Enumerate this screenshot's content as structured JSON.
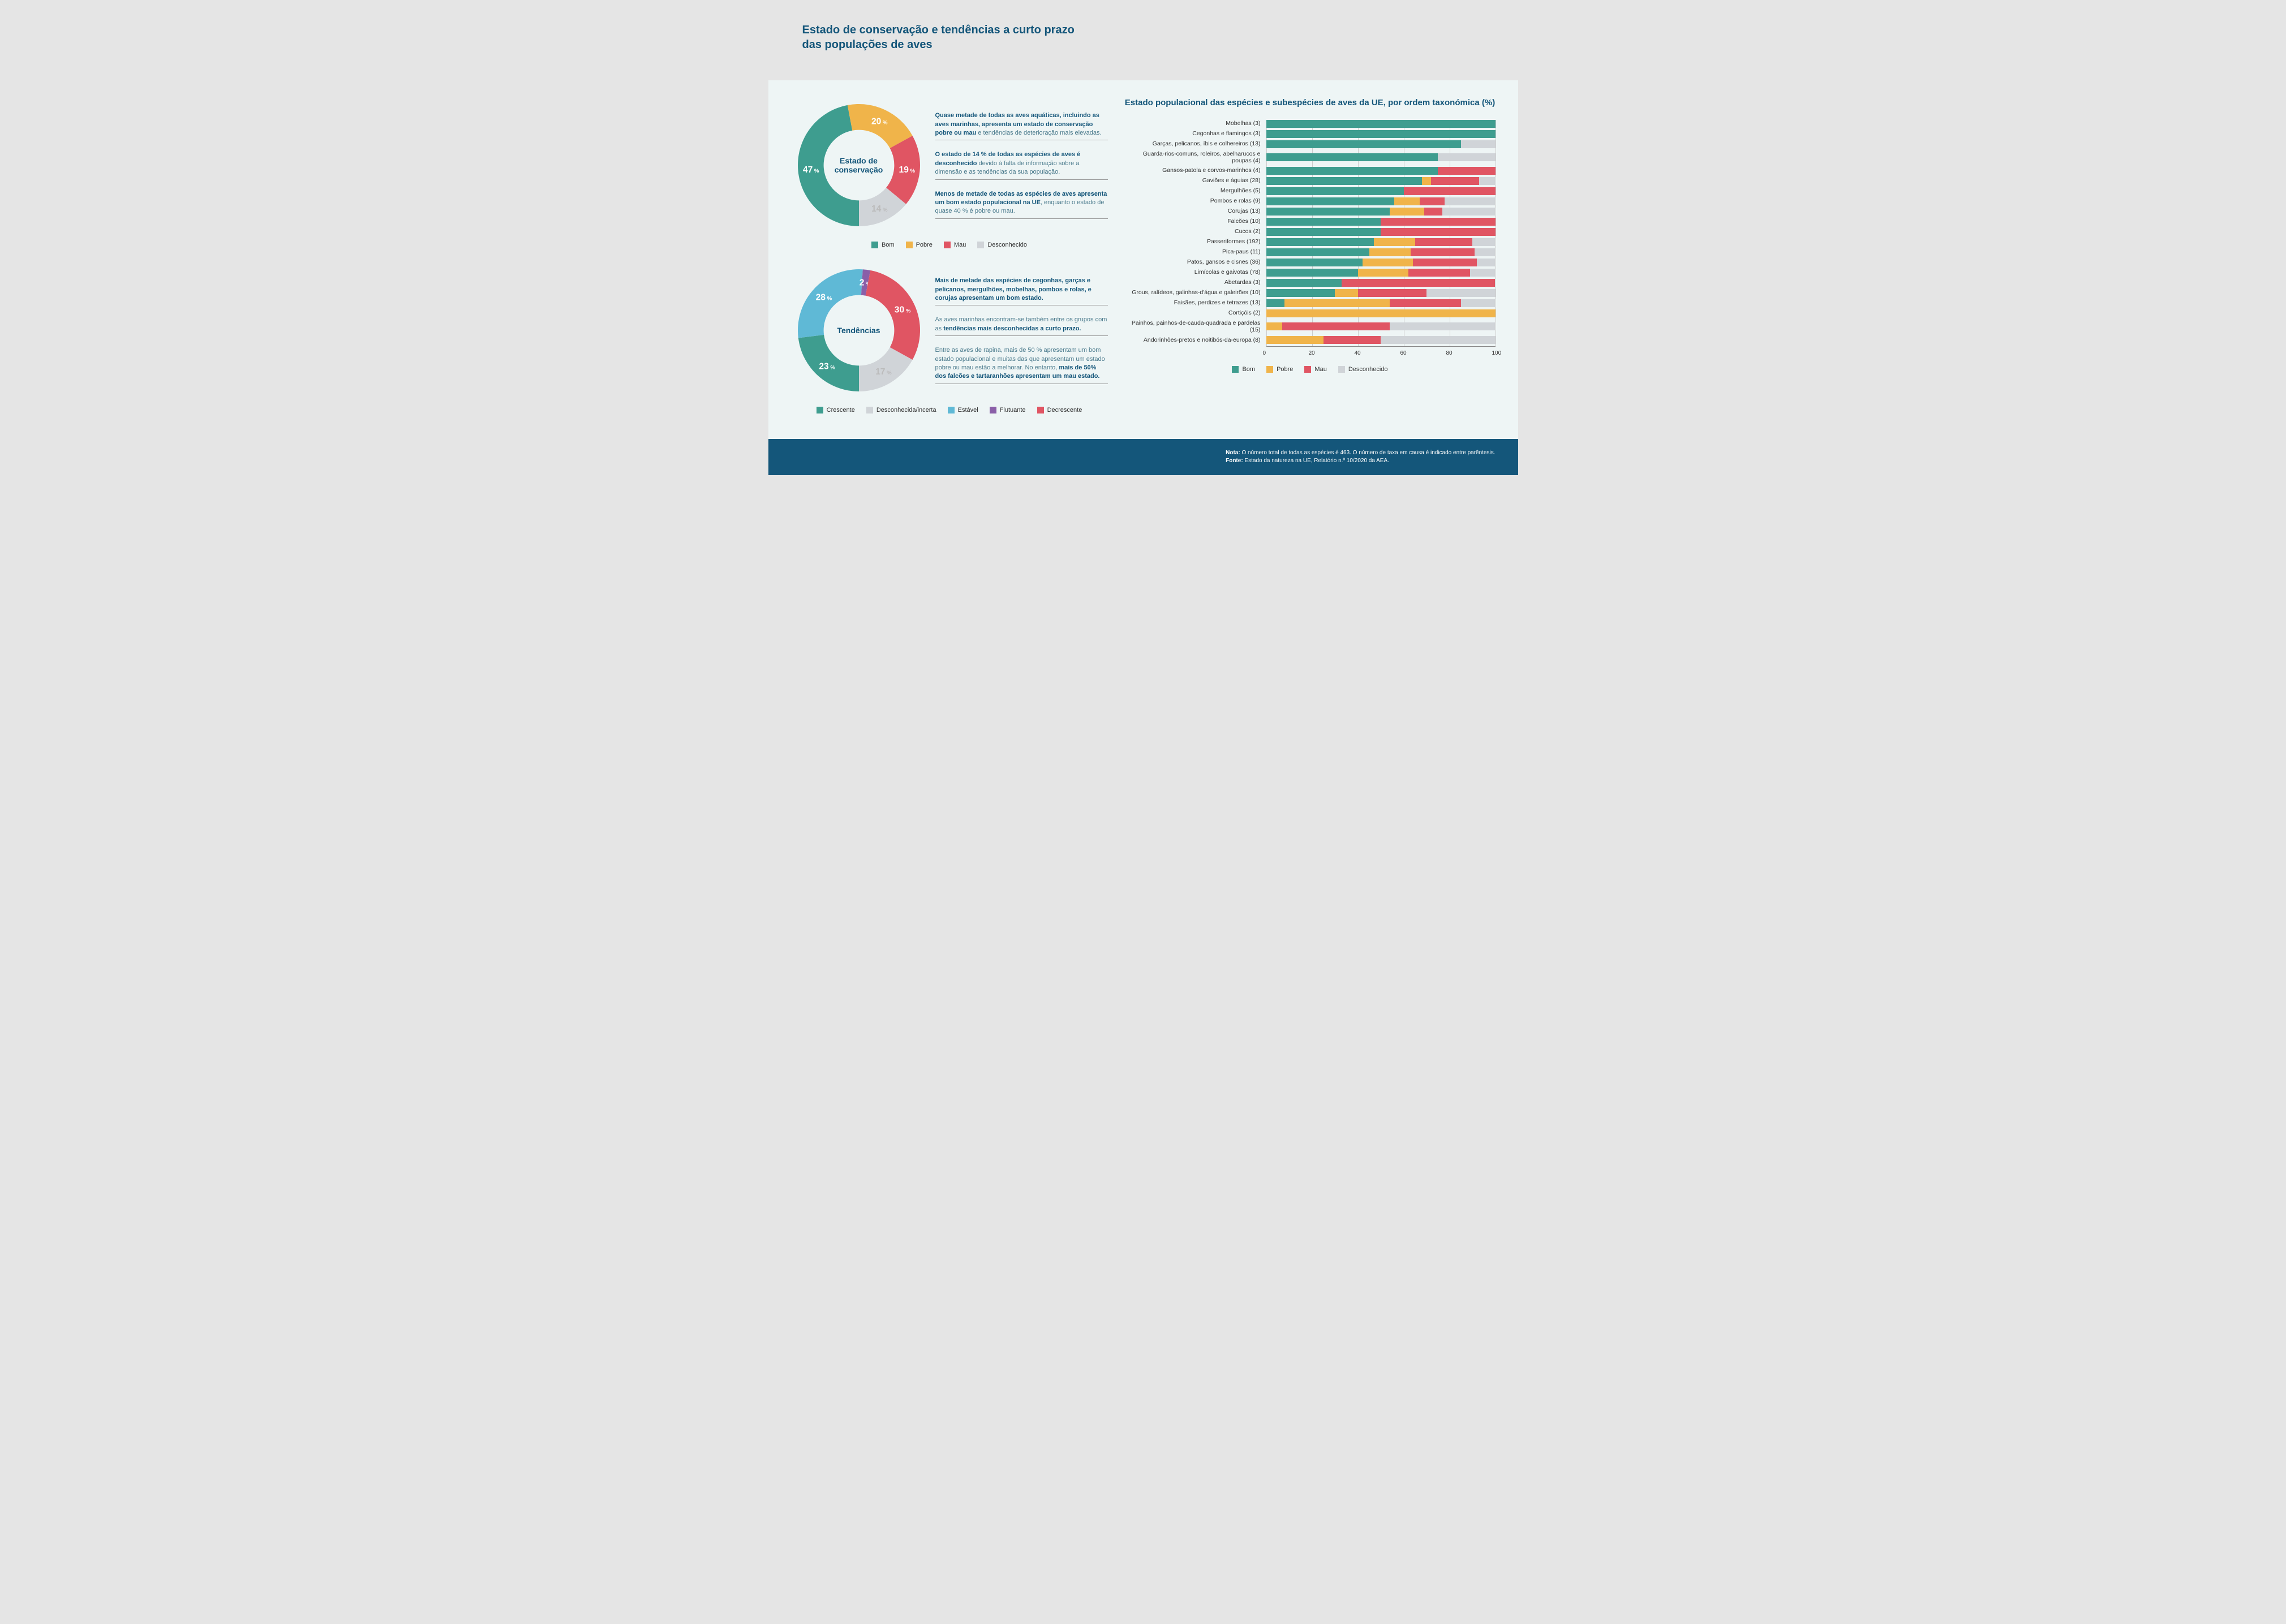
{
  "title": "Estado de conservação e tendências a curto prazo das populações de aves",
  "colors": {
    "bom": "#3e9d8f",
    "pobre": "#f0b44a",
    "mau": "#e05563",
    "desconhecido": "#d0d4d8",
    "crescente": "#3e9d8f",
    "incerta": "#d0d4d8",
    "estavel": "#5fb9d6",
    "flutuante": "#8a5fa8",
    "decrescente": "#e05563",
    "title": "#14567a",
    "footer_bg": "#14567a"
  },
  "donut1": {
    "center": "Estado de conservação",
    "slices": [
      {
        "label": "47",
        "value": 47,
        "color": "#3e9d8f"
      },
      {
        "label": "20",
        "value": 20,
        "color": "#f0b44a"
      },
      {
        "label": "19",
        "value": 19,
        "color": "#e05563"
      },
      {
        "label": "14",
        "value": 14,
        "color": "#d0d4d8"
      }
    ],
    "legend": [
      {
        "label": "Bom",
        "color": "#3e9d8f"
      },
      {
        "label": "Pobre",
        "color": "#f0b44a"
      },
      {
        "label": "Mau",
        "color": "#e05563"
      },
      {
        "label": "Desconhecido",
        "color": "#d0d4d8"
      }
    ],
    "callouts": [
      {
        "bold": "Quase metade de todas as aves aquáticas, incluindo as aves marinhas, apresenta um estado de conservação pobre ou mau",
        "rest": " e tendências de deterioração mais elevadas."
      },
      {
        "bold": "O estado de 14 % de todas as espécies de aves é desconhecido",
        "rest": " devido à falta de informação sobre a dimensão e as tendências da sua população."
      },
      {
        "bold": "Menos de metade de todas as espécies de aves apresenta um bom estado populacional na UE",
        "rest": ", enquanto o estado de quase 40 % é pobre ou mau."
      }
    ]
  },
  "donut2": {
    "center": "Tendências",
    "slices": [
      {
        "label": "23",
        "value": 23,
        "color": "#3e9d8f"
      },
      {
        "label": "28",
        "value": 28,
        "color": "#5fb9d6"
      },
      {
        "label": "2",
        "value": 2,
        "color": "#8a5fa8"
      },
      {
        "label": "30",
        "value": 30,
        "color": "#e05563"
      },
      {
        "label": "17",
        "value": 17,
        "color": "#d0d4d8"
      }
    ],
    "legend": [
      {
        "label": "Crescente",
        "color": "#3e9d8f"
      },
      {
        "label": "Desconhecida/incerta",
        "color": "#d0d4d8"
      },
      {
        "label": "Estável",
        "color": "#5fb9d6"
      },
      {
        "label": "Flutuante",
        "color": "#8a5fa8"
      },
      {
        "label": "Decrescente",
        "color": "#e05563"
      }
    ],
    "callouts": [
      {
        "bold": "Mais de metade das espécies de cegonhas, garças e pelicanos, mergulhões, mobelhas, pombos e rolas, e corujas apresentam um bom estado.",
        "rest": ""
      },
      {
        "bold": "tendências mais desconhecidas a curto prazo.",
        "rest": "",
        "pre": "As aves marinhas encontram-se também entre os grupos com as "
      },
      {
        "bold": "mais de 50% dos falcões e tartaranhões apresentam um mau estado.",
        "rest": "",
        "pre": "Entre as aves de rapina, mais de 50 % apresentam um bom estado populacional e muitas das que apresentam um estado pobre ou mau estão a melhorar. No entanto, "
      }
    ]
  },
  "barChart": {
    "title": "Estado populacional das espécies e subespécies de aves da UE, por ordem taxonómica (%)",
    "xTicks": [
      0,
      20,
      40,
      60,
      80,
      100
    ],
    "legend": [
      {
        "label": "Bom",
        "color": "#3e9d8f"
      },
      {
        "label": "Pobre",
        "color": "#f0b44a"
      },
      {
        "label": "Mau",
        "color": "#e05563"
      },
      {
        "label": "Desconhecido",
        "color": "#d0d4d8"
      }
    ],
    "rows": [
      {
        "label": "Mobelhas (3)",
        "segs": [
          {
            "c": "#3e9d8f",
            "v": 100
          }
        ]
      },
      {
        "label": "Cegonhas e flamingos (3)",
        "segs": [
          {
            "c": "#3e9d8f",
            "v": 100
          }
        ]
      },
      {
        "label": "Garças, pelicanos, íbis e colhereiros (13)",
        "segs": [
          {
            "c": "#3e9d8f",
            "v": 85
          },
          {
            "c": "#d0d4d8",
            "v": 15
          }
        ]
      },
      {
        "label": "Guarda-rios-comuns, roleiros, abelharucos e poupas (4)",
        "segs": [
          {
            "c": "#3e9d8f",
            "v": 75
          },
          {
            "c": "#d0d4d8",
            "v": 25
          }
        ]
      },
      {
        "label": "Gansos-patola e corvos-marinhos (4)",
        "segs": [
          {
            "c": "#3e9d8f",
            "v": 75
          },
          {
            "c": "#e05563",
            "v": 25
          }
        ]
      },
      {
        "label": "Gaviões e águias (28)",
        "segs": [
          {
            "c": "#3e9d8f",
            "v": 68
          },
          {
            "c": "#f0b44a",
            "v": 4
          },
          {
            "c": "#e05563",
            "v": 21
          },
          {
            "c": "#d0d4d8",
            "v": 7
          }
        ]
      },
      {
        "label": "Mergulhões (5)",
        "segs": [
          {
            "c": "#3e9d8f",
            "v": 60
          },
          {
            "c": "#e05563",
            "v": 40
          }
        ]
      },
      {
        "label": "Pombos e rolas (9)",
        "segs": [
          {
            "c": "#3e9d8f",
            "v": 56
          },
          {
            "c": "#f0b44a",
            "v": 11
          },
          {
            "c": "#e05563",
            "v": 11
          },
          {
            "c": "#d0d4d8",
            "v": 22
          }
        ]
      },
      {
        "label": "Corujas (13)",
        "segs": [
          {
            "c": "#3e9d8f",
            "v": 54
          },
          {
            "c": "#f0b44a",
            "v": 15
          },
          {
            "c": "#e05563",
            "v": 8
          },
          {
            "c": "#d0d4d8",
            "v": 23
          }
        ]
      },
      {
        "label": "Falcões (10)",
        "segs": [
          {
            "c": "#3e9d8f",
            "v": 50
          },
          {
            "c": "#e05563",
            "v": 50
          }
        ]
      },
      {
        "label": "Cucos (2)",
        "segs": [
          {
            "c": "#3e9d8f",
            "v": 50
          },
          {
            "c": "#e05563",
            "v": 50
          }
        ]
      },
      {
        "label": "Passeriformes (192)",
        "segs": [
          {
            "c": "#3e9d8f",
            "v": 47
          },
          {
            "c": "#f0b44a",
            "v": 18
          },
          {
            "c": "#e05563",
            "v": 25
          },
          {
            "c": "#d0d4d8",
            "v": 10
          }
        ]
      },
      {
        "label": "Pica-paus (11)",
        "segs": [
          {
            "c": "#3e9d8f",
            "v": 45
          },
          {
            "c": "#f0b44a",
            "v": 18
          },
          {
            "c": "#e05563",
            "v": 28
          },
          {
            "c": "#d0d4d8",
            "v": 9
          }
        ]
      },
      {
        "label": "Patos, gansos e cisnes (36)",
        "segs": [
          {
            "c": "#3e9d8f",
            "v": 42
          },
          {
            "c": "#f0b44a",
            "v": 22
          },
          {
            "c": "#e05563",
            "v": 28
          },
          {
            "c": "#d0d4d8",
            "v": 8
          }
        ]
      },
      {
        "label": "Limícolas e gaivotas (78)",
        "segs": [
          {
            "c": "#3e9d8f",
            "v": 40
          },
          {
            "c": "#f0b44a",
            "v": 22
          },
          {
            "c": "#e05563",
            "v": 27
          },
          {
            "c": "#d0d4d8",
            "v": 11
          }
        ]
      },
      {
        "label": "Abetardas (3)",
        "segs": [
          {
            "c": "#3e9d8f",
            "v": 33
          },
          {
            "c": "#e05563",
            "v": 67
          }
        ]
      },
      {
        "label": "Grous, ralídeos, galinhas-d'água e galeirões (10)",
        "segs": [
          {
            "c": "#3e9d8f",
            "v": 30
          },
          {
            "c": "#f0b44a",
            "v": 10
          },
          {
            "c": "#e05563",
            "v": 30
          },
          {
            "c": "#d0d4d8",
            "v": 30
          }
        ]
      },
      {
        "label": "Faisães, perdizes e tetrazes (13)",
        "segs": [
          {
            "c": "#3e9d8f",
            "v": 8
          },
          {
            "c": "#f0b44a",
            "v": 46
          },
          {
            "c": "#e05563",
            "v": 31
          },
          {
            "c": "#d0d4d8",
            "v": 15
          }
        ]
      },
      {
        "label": "Cortiçóis (2)",
        "segs": [
          {
            "c": "#f0b44a",
            "v": 100
          }
        ]
      },
      {
        "label": "Painhos, painhos-de-cauda-quadrada e pardelas (15)",
        "segs": [
          {
            "c": "#f0b44a",
            "v": 7
          },
          {
            "c": "#e05563",
            "v": 47
          },
          {
            "c": "#d0d4d8",
            "v": 46
          }
        ]
      },
      {
        "label": "Andorinhões-pretos e noitibós-da-europa (8)",
        "segs": [
          {
            "c": "#f0b44a",
            "v": 25
          },
          {
            "c": "#e05563",
            "v": 25
          },
          {
            "c": "#d0d4d8",
            "v": 50
          }
        ]
      }
    ]
  },
  "footer": {
    "note_label": "Nota:",
    "note": " O número total de todas as espécies é 463. O número de taxa em causa é indicado entre parêntesis.",
    "source_label": "Fonte:",
    "source": " Estado da natureza na UE, Relatório n.º 10/2020 da AEA."
  }
}
